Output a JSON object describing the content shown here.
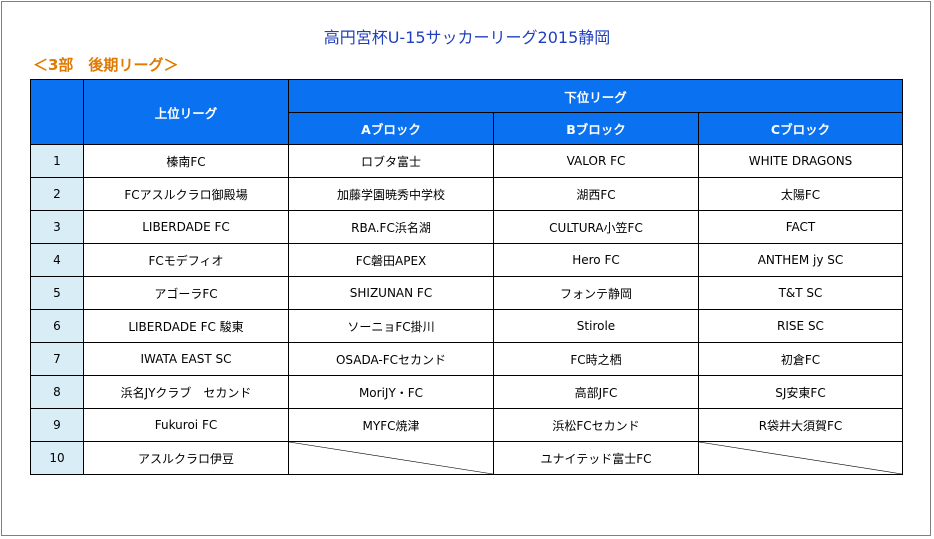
{
  "title": "高円宮杯U-15サッカーリーグ2015静岡",
  "subtitle": "＜3部　後期リーグ＞",
  "headers": {
    "upper": "上位リーグ",
    "lower": "下位リーグ",
    "block_a": "Aブロック",
    "block_b": "Bブロック",
    "block_c": "Cブロック"
  },
  "rows": [
    {
      "num": "1",
      "upper": "榛南FC",
      "a": "ロブタ富士",
      "b": "VALOR FC",
      "c": "WHITE DRAGONS"
    },
    {
      "num": "2",
      "upper": "FCアスルクラロ御殿場",
      "a": "加藤学園暁秀中学校",
      "b": "湖西FC",
      "c": "太陽FC"
    },
    {
      "num": "3",
      "upper": "LIBERDADE FC",
      "a": "RBA.FC浜名湖",
      "b": "CULTURA小笠FC",
      "c": "FACT"
    },
    {
      "num": "4",
      "upper": "FCモデフィオ",
      "a": "FC磐田APEX",
      "b": "Hero FC",
      "c": "ANTHEM jy SC"
    },
    {
      "num": "5",
      "upper": "アゴーラFC",
      "a": "SHIZUNAN FC",
      "b": "フォンテ静岡",
      "c": "T&T SC"
    },
    {
      "num": "6",
      "upper": "LIBERDADE FC 駿東",
      "a": "ソーニョFC掛川",
      "b": "Stirole",
      "c": "RISE SC"
    },
    {
      "num": "7",
      "upper": "IWATA EAST SC",
      "a": "OSADA-FCセカンド",
      "b": "FC時之栖",
      "c": "初倉FC"
    },
    {
      "num": "8",
      "upper": "浜名JYクラブ　セカンド",
      "a": "MoriJY・FC",
      "b": "高部JFC",
      "c": "SJ安東FC"
    },
    {
      "num": "9",
      "upper": "Fukuroi FC",
      "a": "MYFC焼津",
      "b": "浜松FCセカンド",
      "c": "R袋井大須賀FC"
    },
    {
      "num": "10",
      "upper": "アスルクラロ伊豆",
      "a": "",
      "b": "ユナイテッド富士FC",
      "c": ""
    }
  ]
}
